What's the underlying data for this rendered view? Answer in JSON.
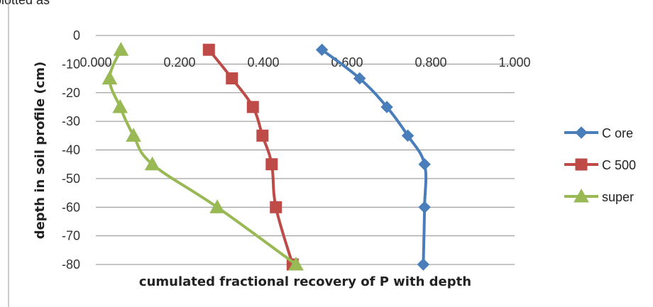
{
  "header_fragment": "plotted as",
  "chart_data": {
    "type": "line",
    "title": "",
    "xlabel": "cumulated fractional recovery of P with depth",
    "ylabel": "depth in soil profile (cm)",
    "xlim": [
      0,
      1
    ],
    "ylim": [
      -80,
      0
    ],
    "x_ticks": [
      "0.000",
      "0.200",
      "0.400",
      "0.600",
      "0.800",
      "1.000"
    ],
    "y_ticks": [
      "0",
      "-10",
      "-20",
      "-30",
      "-40",
      "-50",
      "-60",
      "-70",
      "-80"
    ],
    "grid": "horizontal",
    "legend_position": "right",
    "series": [
      {
        "name": "C ore",
        "color": "#4A7EBB",
        "marker": "diamond",
        "points": [
          {
            "x": 0.54,
            "y": -5
          },
          {
            "x": 0.63,
            "y": -15
          },
          {
            "x": 0.695,
            "y": -25
          },
          {
            "x": 0.745,
            "y": -35
          },
          {
            "x": 0.785,
            "y": -45
          },
          {
            "x": 0.785,
            "y": -60
          },
          {
            "x": 0.782,
            "y": -80
          }
        ]
      },
      {
        "name": "C 500",
        "color": "#BE4B48",
        "marker": "square",
        "points": [
          {
            "x": 0.27,
            "y": -5
          },
          {
            "x": 0.325,
            "y": -15
          },
          {
            "x": 0.375,
            "y": -25
          },
          {
            "x": 0.398,
            "y": -35
          },
          {
            "x": 0.42,
            "y": -45
          },
          {
            "x": 0.43,
            "y": -60
          },
          {
            "x": 0.47,
            "y": -80
          }
        ]
      },
      {
        "name": "super",
        "color": "#98B954",
        "marker": "triangle",
        "points": [
          {
            "x": 0.06,
            "y": -5
          },
          {
            "x": 0.033,
            "y": -15
          },
          {
            "x": 0.058,
            "y": -25
          },
          {
            "x": 0.09,
            "y": -35
          },
          {
            "x": 0.135,
            "y": -45
          },
          {
            "x": 0.29,
            "y": -60
          },
          {
            "x": 0.478,
            "y": -80
          }
        ]
      }
    ]
  }
}
